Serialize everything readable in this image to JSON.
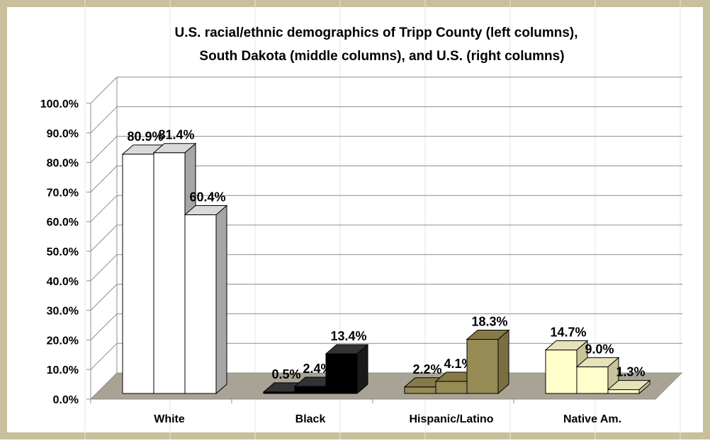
{
  "chart_data": {
    "type": "bar",
    "title": "U.S. racial/ethnic demographics of Tripp County (left columns), South Dakota (middle columns), and U.S. (right columns)",
    "title_lines": [
      "U.S. racial/ethnic demographics of Tripp County (left columns),",
      "South Dakota (middle columns), and U.S. (right columns)"
    ],
    "categories": [
      "White",
      "Black",
      "Hispanic/Latino",
      "Native Am."
    ],
    "series": [
      {
        "name": "Tripp County",
        "values": [
          80.9,
          0.5,
          2.2,
          14.7
        ]
      },
      {
        "name": "South Dakota",
        "values": [
          81.4,
          2.4,
          4.1,
          9.0
        ]
      },
      {
        "name": "U.S.",
        "values": [
          60.4,
          13.4,
          18.3,
          1.3
        ]
      }
    ],
    "data_labels": [
      [
        "80.9%",
        "81.4%",
        "60.4%"
      ],
      [
        "0.5%",
        "2.4%",
        "13.4%"
      ],
      [
        "2.2%",
        "4.1%",
        "18.3%"
      ],
      [
        "14.7%",
        "9.0%",
        "1.3%"
      ]
    ],
    "category_colors": [
      "#ffffff",
      "#000000",
      "#968a55",
      "#ffffcc"
    ],
    "category_side_colors": [
      "#a6a6a6",
      "#1a1a1a",
      "#7a6f40",
      "#c8c39a"
    ],
    "category_top_colors": [
      "#d9d9d9",
      "#333333",
      "#857a48",
      "#e6e3b8"
    ],
    "y_ticks": [
      "0.0%",
      "10.0%",
      "20.0%",
      "30.0%",
      "40.0%",
      "50.0%",
      "60.0%",
      "70.0%",
      "80.0%",
      "90.0%",
      "100.0%"
    ],
    "ylim": [
      0,
      100
    ],
    "xlabel": "",
    "ylabel": "",
    "grid": true,
    "legend": "none",
    "frame_color": "#c8c09c",
    "floor_color": "#a8a394"
  }
}
